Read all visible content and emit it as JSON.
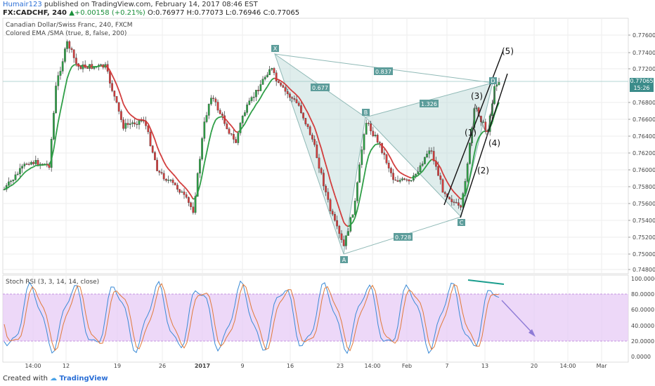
{
  "header": {
    "author": "Humair123",
    "published": "published on TradingView.com, February 14, 2017 08:46 EST",
    "symbol": "FX:CADCHF, 240",
    "change_arrow": "▲",
    "change": "+0.00158 (+0.21%)",
    "ohlc": "O:0.76977 H:0.77073 L:0.76946 C:0.77065"
  },
  "legend": {
    "title": "Canadian Dollar/Swiss Franc, 240, FXCM",
    "indicator": "Colored EMA /SMA (true, 8, false, 200)",
    "rsi": "Stoch RSI (3, 3, 14, 14, close)"
  },
  "price_axis": [
    "0.77600",
    "0.77400",
    "0.77200",
    "0.76800",
    "0.76600",
    "0.76400",
    "0.76200",
    "0.76000",
    "0.75800",
    "0.75600",
    "0.75400",
    "0.75200",
    "0.75000",
    "0.74800"
  ],
  "current_price": "0.77065",
  "current_time": "15:26",
  "rsi_axis": [
    "100.0000",
    "80.0000",
    "60.0000",
    "40.0000",
    "20.0000",
    "0.0000"
  ],
  "time_axis": [
    "14:00",
    "12",
    "19",
    "26",
    "2017",
    "9",
    "16",
    "23",
    "14:00",
    "Feb",
    "7",
    "13",
    "20",
    "14:00",
    "Mar"
  ],
  "pattern_points": [
    "X",
    "B",
    "A",
    "C",
    "D"
  ],
  "ratios": [
    "0.837",
    "0.677",
    "1.326",
    "0.728"
  ],
  "waves": [
    "(1)",
    "(2)",
    "(3)",
    "(4)",
    "(5)"
  ],
  "footer": {
    "created": "Created with",
    "brand": "TradingView"
  },
  "colors": {
    "bull": "#2e9e46",
    "bear": "#d23c3c",
    "pattern_fill": "#b7d6d4",
    "rsi_band": "#e6c7f5",
    "label_bg": "#5d9d9b"
  }
}
